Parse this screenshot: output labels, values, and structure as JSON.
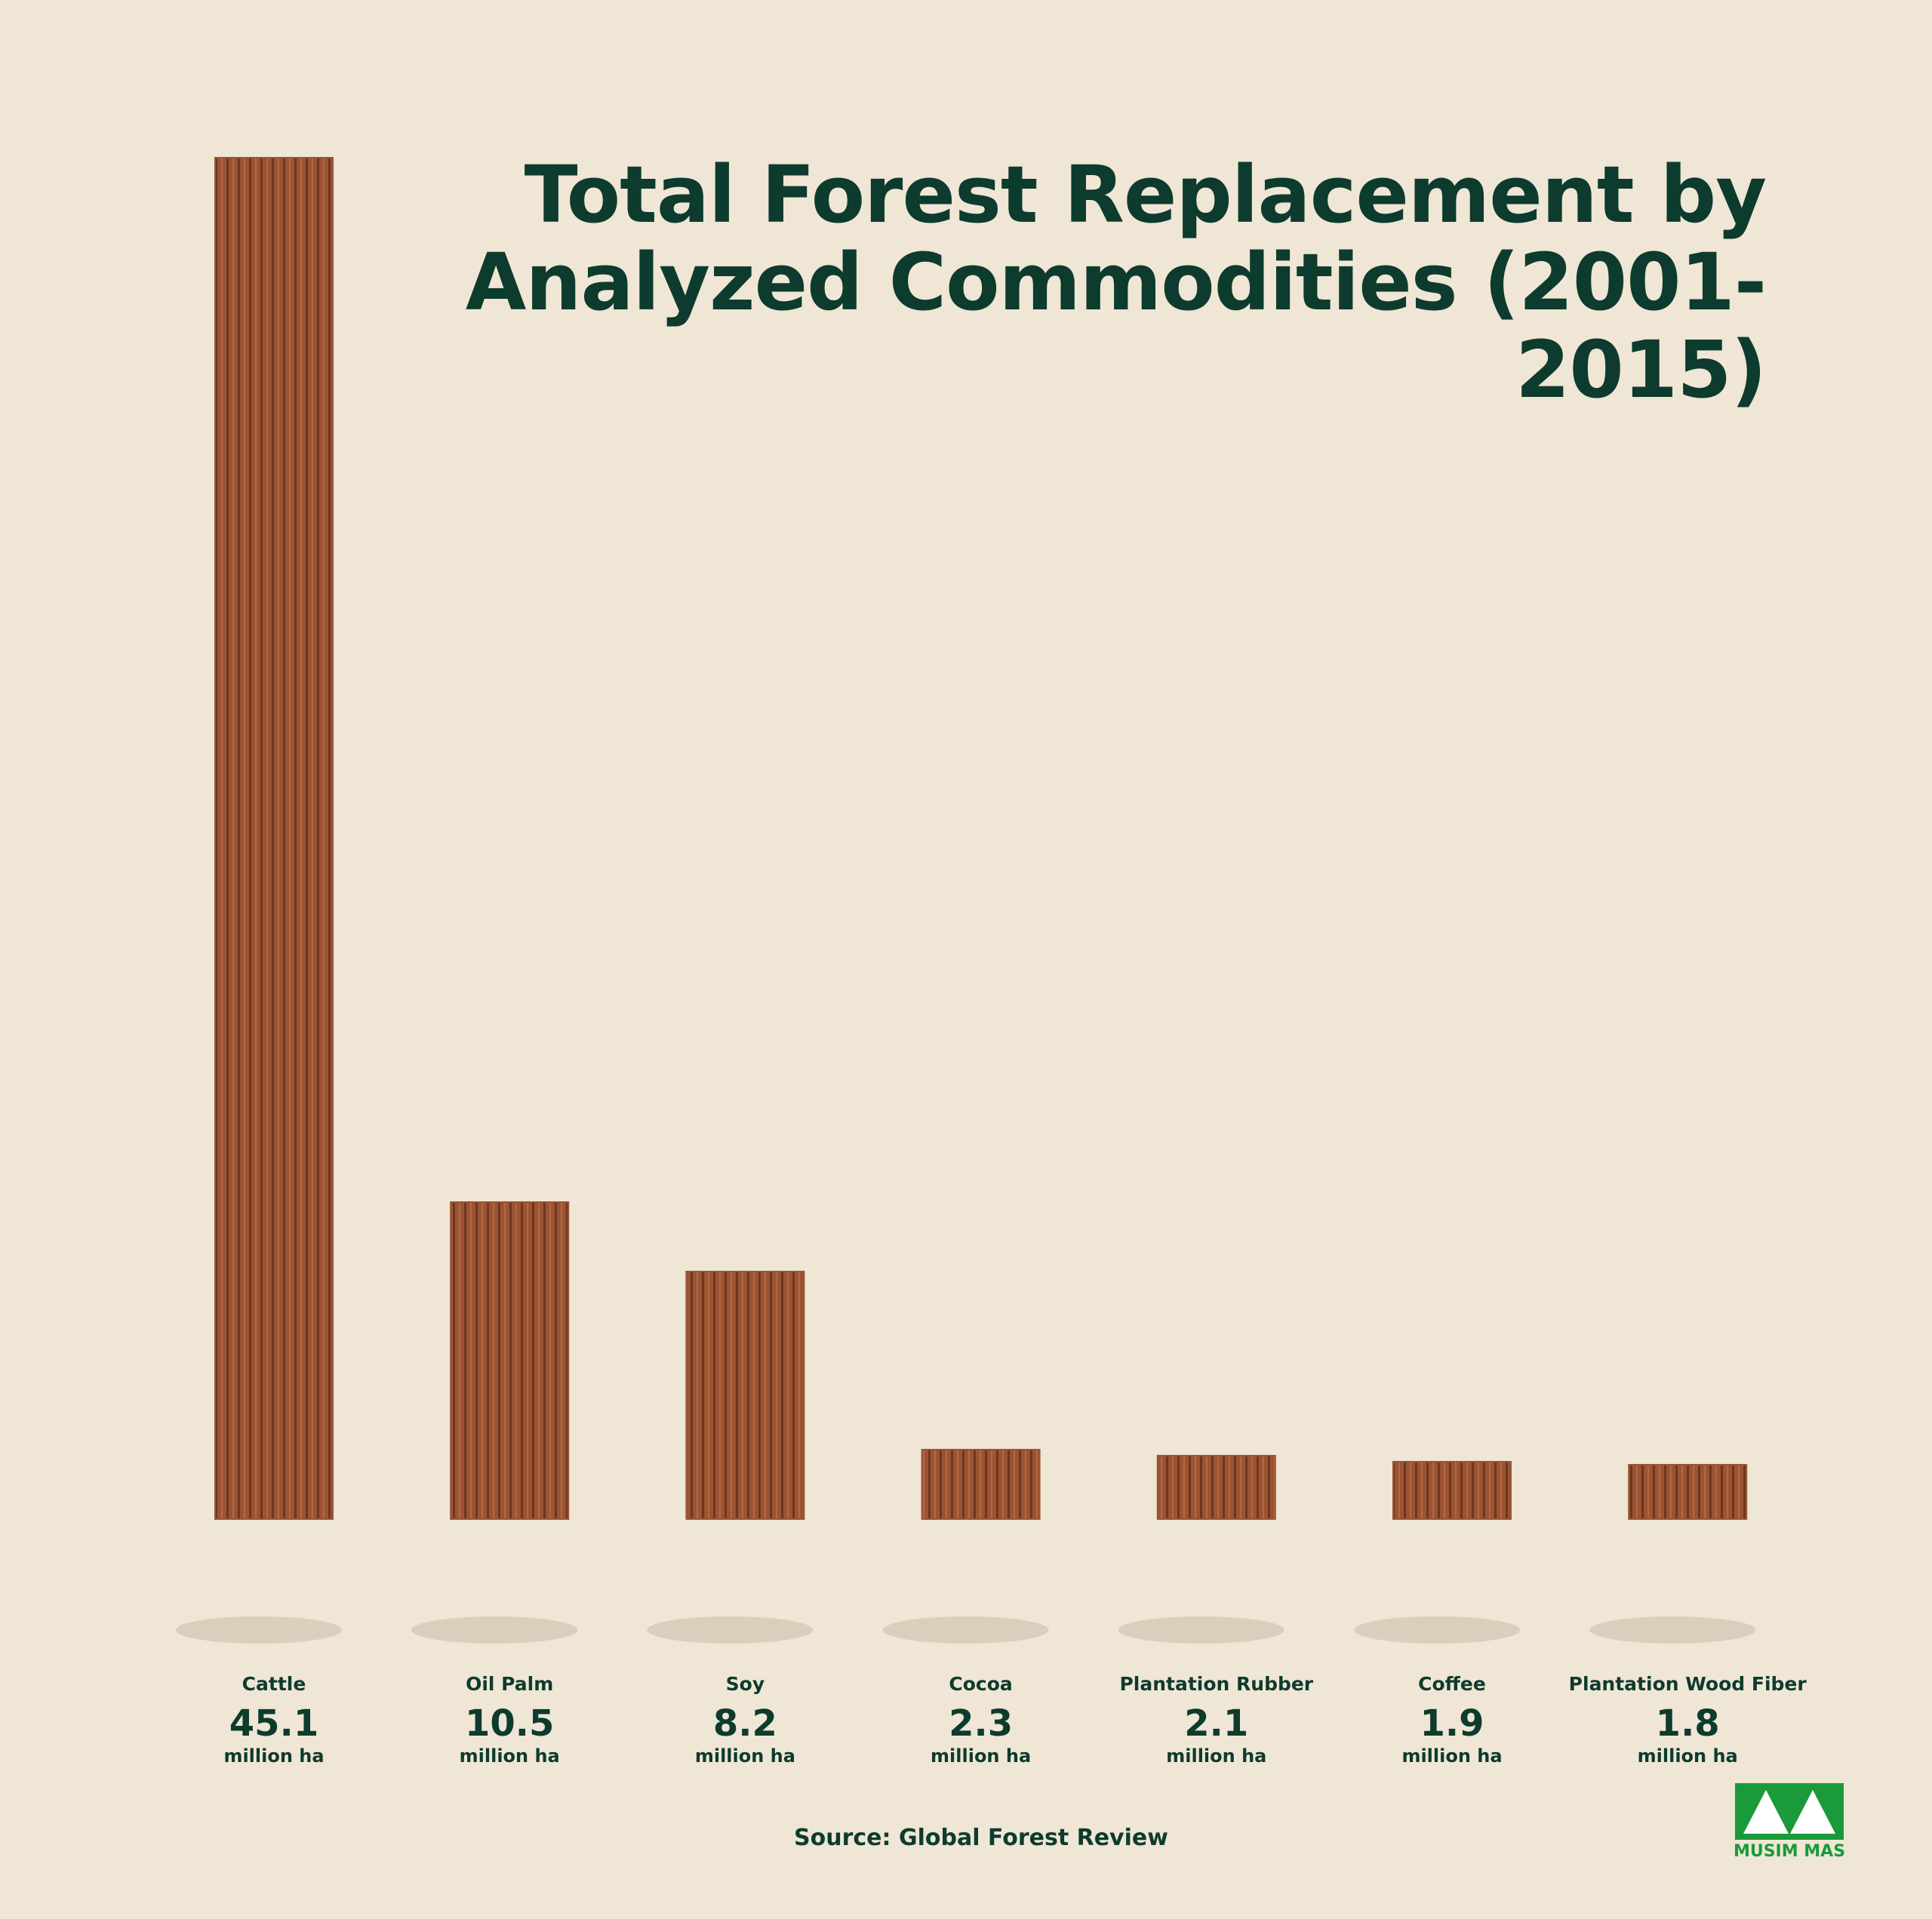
{
  "chart_data": {
    "type": "bar",
    "title": "Total Forest Replacement by Analyzed Commodities (2001-2015)",
    "categories": [
      "Cattle",
      "Oil Palm",
      "Soy",
      "Cocoa",
      "Plantation Rubber",
      "Coffee",
      "Plantation Wood Fiber"
    ],
    "values": [
      45.1,
      10.5,
      8.2,
      2.3,
      2.1,
      1.9,
      1.8
    ],
    "unit": "million ha",
    "color": "#9a5434",
    "source": "Source: Global Forest Review",
    "logo": "MUSIM MAS"
  }
}
